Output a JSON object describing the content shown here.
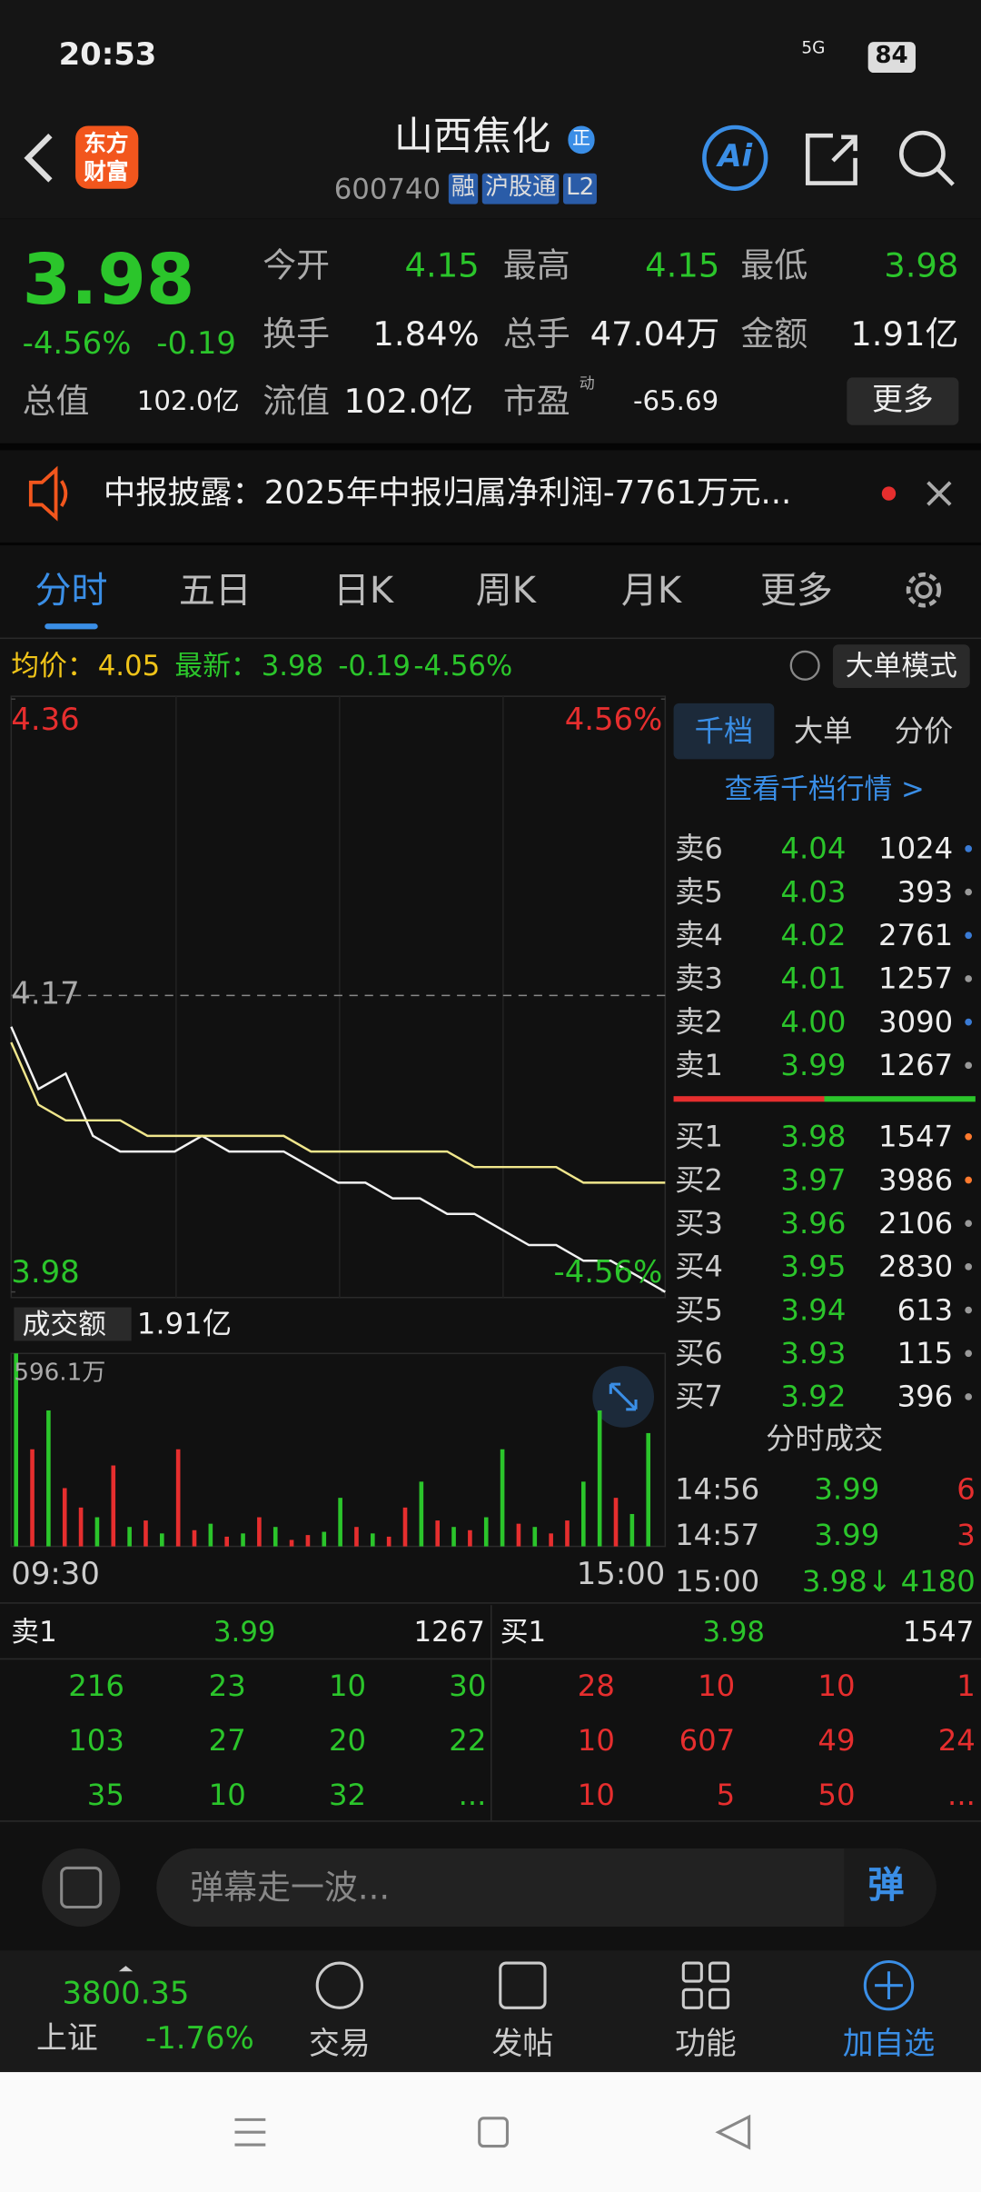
{
  "status_bar": {
    "time": "20:53",
    "network": "5G",
    "battery": "84"
  },
  "header": {
    "logo": [
      "东方",
      "财富"
    ],
    "name": "山西焦化",
    "badge": "正",
    "code": "600740",
    "tags": [
      "融",
      "沪股通",
      "L2"
    ],
    "ai": "Ai"
  },
  "quote": {
    "price": "3.98",
    "change_pct": "-4.56%",
    "change": "-0.19",
    "fields": [
      {
        "label": "今开",
        "value": "4.15",
        "color": "#2bc52b"
      },
      {
        "label": "最高",
        "value": "4.15",
        "color": "#2bc52b"
      },
      {
        "label": "最低",
        "value": "3.98",
        "color": "#2bc52b"
      },
      {
        "label": "换手",
        "value": "1.84%",
        "color": "#eeeeee"
      },
      {
        "label": "总手",
        "value": "47.04万",
        "color": "#eeeeee"
      },
      {
        "label": "金额",
        "value": "1.91亿",
        "color": "#eeeeee"
      }
    ],
    "total_value": {
      "label": "总值",
      "value": "102.0亿"
    },
    "float_value": {
      "label": "流值",
      "value": "102.0亿"
    },
    "pe": {
      "label": "市盈",
      "badge": "动",
      "value": "-65.69"
    },
    "more": "更多"
  },
  "notice": "中报披露：2025年中报归属净利润-7761万元...",
  "tabs": [
    "分时",
    "五日",
    "日K",
    "周K",
    "月K",
    "更多"
  ],
  "chart_bar": {
    "avg_label": "均价：",
    "avg": "4.05",
    "latest_label": "最新：",
    "latest": "3.98",
    "change": "-0.19",
    "pct": "-4.56%",
    "mode": "大单模式"
  },
  "chart_data": {
    "type": "line",
    "ylim": [
      3.98,
      4.36
    ],
    "yticks": [
      4.36,
      4.17,
      3.98
    ],
    "reference": 4.17,
    "y2lim": [
      -4.56,
      4.56
    ],
    "y2ticks": [
      {
        "value": 4.56,
        "label": "4.56%"
      },
      {
        "value": -4.56,
        "label": "-4.56%"
      }
    ],
    "series": [
      {
        "color": "#f2f2f2",
        "values": [
          4.15,
          4.11,
          4.12,
          4.08,
          4.07,
          4.07,
          4.07,
          4.08,
          4.07,
          4.07,
          4.07,
          4.06,
          4.05,
          4.05,
          4.04,
          4.04,
          4.03,
          4.03,
          4.02,
          4.01,
          4.01,
          4.0,
          4.0,
          3.99,
          3.98
        ]
      },
      {
        "color": "#f0e68c",
        "values": [
          4.14,
          4.1,
          4.09,
          4.09,
          4.09,
          4.08,
          4.08,
          4.08,
          4.08,
          4.08,
          4.08,
          4.07,
          4.07,
          4.07,
          4.07,
          4.07,
          4.07,
          4.06,
          4.06,
          4.06,
          4.06,
          4.05,
          4.05,
          4.05,
          4.05
        ]
      }
    ],
    "x_labels": [
      "09:30",
      "15:00"
    ],
    "volume": {
      "label": "成交额",
      "total": "1.91亿",
      "ylim": [
        0,
        596.1
      ],
      "yticks": [
        {
          "value": 596.1,
          "label": "596.1万"
        }
      ],
      "values": [
        596.1,
        300,
        420,
        180,
        120,
        90,
        250,
        60,
        80,
        40,
        300,
        50,
        70,
        30,
        40,
        90,
        60,
        20,
        35,
        45,
        150,
        60,
        40,
        30,
        120,
        200,
        80,
        60,
        50,
        90,
        300,
        70,
        60,
        40,
        80,
        200,
        420,
        150,
        100,
        350
      ],
      "colors": [
        "#2bc52b",
        "#e62e2e",
        "#2bc52b",
        "#e62e2e",
        "#e62e2e",
        "#2bc52b",
        "#e62e2e",
        "#2bc52b",
        "#e62e2e",
        "#2bc52b",
        "#e62e2e",
        "#e62e2e",
        "#2bc52b",
        "#e62e2e",
        "#2bc52b",
        "#e62e2e",
        "#2bc52b",
        "#e62e2e",
        "#e62e2e",
        "#2bc52b",
        "#2bc52b",
        "#e62e2e",
        "#2bc52b",
        "#e62e2e",
        "#e62e2e",
        "#2bc52b",
        "#e62e2e",
        "#2bc52b",
        "#e62e2e",
        "#2bc52b",
        "#2bc52b",
        "#e62e2e",
        "#2bc52b",
        "#e62e2e",
        "#e62e2e",
        "#2bc52b",
        "#2bc52b",
        "#e62e2e",
        "#2bc52b",
        "#2bc52b"
      ]
    }
  },
  "order_book": {
    "tabs": [
      "千档",
      "大单",
      "分价"
    ],
    "link": "查看千档行情 >",
    "asks": [
      {
        "label": "卖6",
        "price": "4.04",
        "volume": "1024",
        "dot": "#3a7bd5"
      },
      {
        "label": "卖5",
        "price": "4.03",
        "volume": "393",
        "dot": "#999999"
      },
      {
        "label": "卖4",
        "price": "4.02",
        "volume": "2761",
        "dot": "#3a7bd5"
      },
      {
        "label": "卖3",
        "price": "4.01",
        "volume": "1257",
        "dot": "#999999"
      },
      {
        "label": "卖2",
        "price": "4.00",
        "volume": "3090",
        "dot": "#3a7bd5"
      },
      {
        "label": "卖1",
        "price": "3.99",
        "volume": "1267",
        "dot": "#999999"
      }
    ],
    "bids": [
      {
        "label": "买1",
        "price": "3.98",
        "volume": "1547",
        "dot": "#ff7a2e"
      },
      {
        "label": "买2",
        "price": "3.97",
        "volume": "3986",
        "dot": "#ff7a2e"
      },
      {
        "label": "买3",
        "price": "3.96",
        "volume": "2106",
        "dot": "#999999"
      },
      {
        "label": "买4",
        "price": "3.95",
        "volume": "2830",
        "dot": "#999999"
      },
      {
        "label": "买5",
        "price": "3.94",
        "volume": "613",
        "dot": "#999999"
      },
      {
        "label": "买6",
        "price": "3.93",
        "volume": "115",
        "dot": "#999999"
      },
      {
        "label": "买7",
        "price": "3.92",
        "volume": "396",
        "dot": "#999999"
      }
    ]
  },
  "trades": {
    "title": "分时成交",
    "rows": [
      {
        "time": "14:56",
        "price": "3.99",
        "volume": "6",
        "volume_color": "#e62e2e"
      },
      {
        "time": "14:57",
        "price": "3.99",
        "volume": "3",
        "volume_color": "#e62e2e"
      },
      {
        "time": "15:00",
        "price": "3.98↓",
        "volume": "4180",
        "volume_color": "#2bc52b"
      }
    ]
  },
  "queue": {
    "sell": {
      "label": "卖1",
      "price": "3.99",
      "volume": "1267",
      "orders": [
        "216",
        "23",
        "10",
        "30",
        "103",
        "27",
        "20",
        "22",
        "35",
        "10",
        "32",
        "..."
      ]
    },
    "buy": {
      "label": "买1",
      "price": "3.98",
      "volume": "1547",
      "orders": [
        "28",
        "10",
        "10",
        "1",
        "10",
        "607",
        "49",
        "24",
        "10",
        "5",
        "50",
        "..."
      ]
    }
  },
  "comment": {
    "placeholder": "弹幕走一波...",
    "button": "弹"
  },
  "bottom_nav": {
    "index": {
      "value": "3800.35",
      "name": "上证",
      "pct": "-1.76%"
    },
    "items": [
      "交易",
      "发帖",
      "功能",
      "加自选"
    ]
  }
}
